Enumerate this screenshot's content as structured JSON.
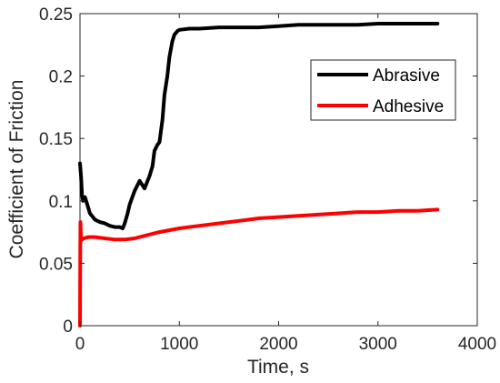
{
  "chart_data": {
    "type": "line",
    "title": "",
    "xlabel": "Time, s",
    "ylabel": "Coefficient of Friction",
    "xlim": [
      0,
      4000
    ],
    "ylim": [
      0,
      0.25
    ],
    "xticks": [
      0,
      1000,
      2000,
      3000,
      4000
    ],
    "xtick_labels": [
      "0",
      "1000",
      "2000",
      "3000",
      "4000"
    ],
    "yticks": [
      0,
      0.05,
      0.1,
      0.15,
      0.2,
      0.25
    ],
    "ytick_labels": [
      "0",
      "0.05",
      "0.1",
      "0.15",
      "0.2",
      "0.25"
    ],
    "grid": false,
    "legend_position": "upper-right",
    "series": [
      {
        "name": "Abrasive",
        "color": "#000000",
        "x": [
          0,
          10,
          20,
          30,
          50,
          70,
          100,
          150,
          200,
          250,
          300,
          350,
          400,
          430,
          450,
          480,
          500,
          550,
          600,
          650,
          700,
          730,
          750,
          780,
          800,
          830,
          850,
          880,
          900,
          930,
          950,
          980,
          1000,
          1100,
          1200,
          1400,
          1600,
          1800,
          2000,
          2200,
          2400,
          2600,
          2800,
          3000,
          3200,
          3400,
          3600
        ],
        "y": [
          0.13,
          0.12,
          0.105,
          0.1,
          0.103,
          0.098,
          0.09,
          0.085,
          0.083,
          0.082,
          0.08,
          0.079,
          0.079,
          0.078,
          0.082,
          0.09,
          0.097,
          0.108,
          0.116,
          0.11,
          0.12,
          0.128,
          0.14,
          0.145,
          0.147,
          0.165,
          0.185,
          0.2,
          0.215,
          0.228,
          0.233,
          0.236,
          0.237,
          0.238,
          0.238,
          0.239,
          0.239,
          0.239,
          0.24,
          0.241,
          0.241,
          0.241,
          0.241,
          0.242,
          0.242,
          0.242,
          0.242
        ]
      },
      {
        "name": "Adhesive",
        "color": "#ff0000",
        "x": [
          0,
          3,
          5,
          8,
          12,
          20,
          40,
          80,
          150,
          250,
          350,
          450,
          550,
          650,
          800,
          1000,
          1200,
          1400,
          1600,
          1800,
          2000,
          2200,
          2400,
          2600,
          2800,
          3000,
          3200,
          3400,
          3600
        ],
        "y": [
          0.0,
          0.06,
          0.083,
          0.075,
          0.068,
          0.069,
          0.07,
          0.071,
          0.071,
          0.07,
          0.069,
          0.069,
          0.07,
          0.072,
          0.075,
          0.078,
          0.08,
          0.082,
          0.084,
          0.086,
          0.087,
          0.088,
          0.089,
          0.09,
          0.091,
          0.091,
          0.092,
          0.092,
          0.093
        ]
      }
    ]
  }
}
